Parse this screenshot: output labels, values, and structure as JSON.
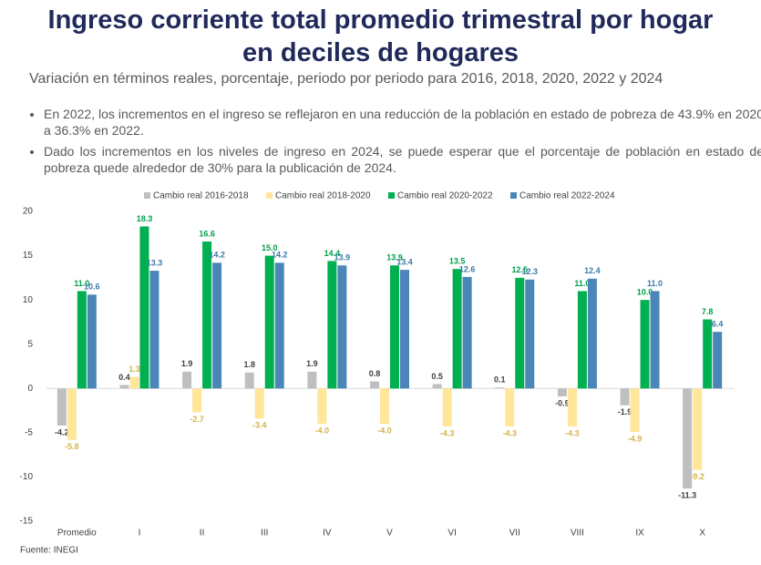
{
  "chart_data": {
    "type": "bar",
    "title": "Ingreso corriente total promedio trimestral por hogar en deciles de hogares",
    "subtitle": "Variación en términos reales, porcentaje, periodo por periodo para 2016, 2018, 2020, 2022 y 2024",
    "bullets": [
      "En 2022, los incrementos en el ingreso se reflejaron en una reducción de la población en estado de pobreza de 43.9% en 2020 a 36.3% en 2022.",
      "Dado los incrementos en los niveles de ingreso en 2024, se puede esperar que el porcentaje de población en estado de pobreza quede alrededor de 30% para la publicación de 2024."
    ],
    "source": "Fuente: INEGI",
    "categories": [
      "Promedio",
      "I",
      "II",
      "III",
      "IV",
      "V",
      "VI",
      "VII",
      "VIII",
      "IX",
      "X"
    ],
    "series": [
      {
        "name": "Cambio real 2016-2018",
        "color": "#bfbfbf",
        "label_color": "#404040",
        "values": [
          -4.2,
          0.4,
          1.9,
          1.8,
          1.9,
          0.8,
          0.5,
          0.1,
          -0.9,
          -1.9,
          -11.3
        ],
        "value_labels": [
          "-4.2",
          "0.4",
          "1.9",
          "1.8",
          "1.9",
          "0.8",
          "0.5",
          "0.1",
          "-0.9",
          "-1.9",
          "-11.3"
        ]
      },
      {
        "name": "Cambio real 2018-2020",
        "color": "#ffe699",
        "label_color": "#d4b44a",
        "values": [
          -5.8,
          1.3,
          -2.7,
          -3.4,
          -4.0,
          -4.0,
          -4.3,
          -4.3,
          -4.3,
          -4.9,
          -9.2
        ],
        "value_labels": [
          "-5.8",
          "1.3",
          "-2.7",
          "-3.4",
          "-4.0",
          "-4.0",
          "-4.3",
          "-4.3",
          "-4.3",
          "-4.9",
          "-9.2"
        ]
      },
      {
        "name": "Cambio real 2020-2022",
        "color": "#00b050",
        "label_color": "#00a04a",
        "values": [
          11.0,
          18.3,
          16.6,
          15.0,
          14.4,
          13.9,
          13.5,
          12.5,
          11.0,
          10.0,
          7.8
        ],
        "value_labels": [
          "11.0",
          "18.3",
          "16.6",
          "15.0",
          "14.4",
          "13.9",
          "13.5",
          "12.5",
          "11.0",
          "10.0",
          "7.8"
        ]
      },
      {
        "name": "Cambio real 2022-2024",
        "color": "#4a86b8",
        "label_color": "#3a7aa8",
        "values": [
          10.6,
          13.3,
          14.2,
          14.2,
          13.9,
          13.4,
          12.6,
          12.3,
          12.4,
          11.0,
          6.4
        ],
        "value_labels": [
          "10.6",
          "13.3",
          "14.2",
          "14.2",
          "13.9",
          "13.4",
          "12.6",
          "12.3",
          "12.4",
          "11.0",
          "6.4"
        ]
      }
    ],
    "ylim": [
      -15,
      20
    ],
    "yticks": [
      -15,
      -10,
      -5,
      0,
      5,
      10,
      15,
      20
    ]
  }
}
